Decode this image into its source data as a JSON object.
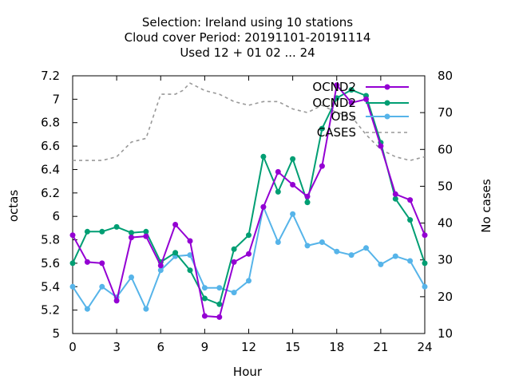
{
  "chart_data": {
    "type": "line",
    "title_lines": [
      "Selection: Ireland using    10 stations",
      "Cloud cover   Period: 20191101-20191114",
      "Used  12 + 01 02 ... 24"
    ],
    "xlabel": "Hour",
    "ylabel": "octas",
    "y2label": "No cases",
    "xlim": [
      0,
      24
    ],
    "ylim": [
      5,
      7.2
    ],
    "y2lim": [
      10,
      80
    ],
    "x_ticks": [
      "0",
      "3",
      "6",
      "9",
      "12",
      "15",
      "18",
      "21",
      "24"
    ],
    "x_tick_values": [
      0,
      3,
      6,
      9,
      12,
      15,
      18,
      21,
      24
    ],
    "y_ticks": [
      "5",
      "5.2",
      "5.4",
      "5.6",
      "5.8",
      "6",
      "6.2",
      "6.4",
      "6.6",
      "6.8",
      "7",
      "7.2"
    ],
    "y_tick_values": [
      5,
      5.2,
      5.4,
      5.6,
      5.8,
      6,
      6.2,
      6.4,
      6.6,
      6.8,
      7,
      7.2
    ],
    "y2_ticks": [
      "10",
      "20",
      "30",
      "40",
      "50",
      "60",
      "70",
      "80"
    ],
    "y2_tick_values": [
      10,
      20,
      30,
      40,
      50,
      60,
      70,
      80
    ],
    "grid": false,
    "legend_position": "top-right",
    "x": [
      0,
      1,
      2,
      3,
      4,
      5,
      6,
      7,
      8,
      9,
      10,
      11,
      12,
      13,
      14,
      15,
      16,
      17,
      18,
      19,
      20,
      21,
      22,
      23,
      24
    ],
    "series": [
      {
        "name": "OCND2",
        "color": "#9400d3",
        "marker": "circle",
        "axis": "y",
        "values": [
          5.84,
          5.61,
          5.6,
          5.28,
          5.82,
          5.83,
          5.58,
          5.93,
          5.79,
          5.15,
          5.14,
          5.61,
          5.68,
          6.08,
          6.38,
          6.27,
          6.17,
          6.43,
          7.12,
          6.97,
          7.0,
          6.6,
          6.19,
          6.14,
          5.84
        ]
      },
      {
        "name": "OCND2",
        "color": "#009e73",
        "marker": "circle",
        "axis": "y",
        "values": [
          5.6,
          5.87,
          5.87,
          5.91,
          5.86,
          5.87,
          5.61,
          5.69,
          5.54,
          5.3,
          5.25,
          5.72,
          5.84,
          6.51,
          6.21,
          6.49,
          6.12,
          6.75,
          7.01,
          7.08,
          7.03,
          6.63,
          6.15,
          5.97,
          5.6
        ]
      },
      {
        "name": "OBS",
        "color": "#56b4e9",
        "marker": "circle",
        "axis": "y",
        "values": [
          5.4,
          5.21,
          5.4,
          5.31,
          5.48,
          5.21,
          5.54,
          5.66,
          5.67,
          5.39,
          5.39,
          5.35,
          5.45,
          6.08,
          5.78,
          6.02,
          5.75,
          5.78,
          5.7,
          5.67,
          5.73,
          5.59,
          5.66,
          5.62,
          5.4
        ]
      },
      {
        "name": "CASES",
        "color": "#999999",
        "dashed": true,
        "axis": "y2",
        "x": [
          0,
          1,
          2,
          3,
          4,
          5,
          6,
          7,
          7.5,
          8,
          8.5,
          9,
          10,
          11,
          12,
          13,
          14,
          15,
          16,
          17,
          18,
          19,
          20,
          21,
          22,
          23,
          24
        ],
        "values": [
          57,
          57,
          57,
          58,
          62,
          63,
          75,
          75,
          76,
          78,
          77,
          76,
          75,
          73,
          72,
          73,
          73,
          71,
          70,
          72,
          70,
          69,
          64,
          60,
          58,
          57,
          58
        ]
      }
    ]
  }
}
